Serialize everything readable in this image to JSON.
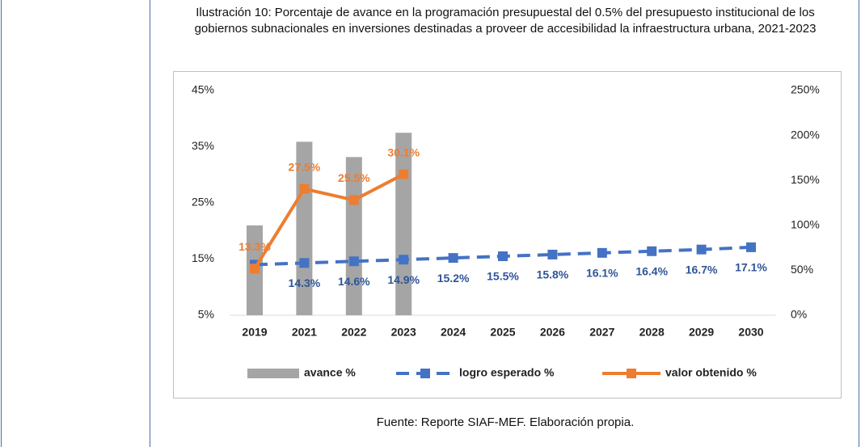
{
  "chart_data": {
    "type": "combo",
    "title": "Ilustración 10: Porcentaje de avance en la programación presupuestal del 0.5% del presupuesto institucional de los gobiernos subnacionales en inversiones destinadas a proveer de accesibilidad la infraestructura urbana, 2021-2023",
    "categories": [
      "2019",
      "2021",
      "2022",
      "2023",
      "2024",
      "2025",
      "2026",
      "2027",
      "2028",
      "2029",
      "2030"
    ],
    "series": [
      {
        "name": "avance %",
        "type": "bar",
        "axis": "y2",
        "color": "#a5a5a5",
        "values": [
          100,
          193,
          176,
          203,
          null,
          null,
          null,
          null,
          null,
          null,
          null
        ]
      },
      {
        "name": "logro esperado %",
        "type": "line",
        "dash": true,
        "color": "#4472c4",
        "label_position": "below",
        "values": [
          14.0,
          14.3,
          14.6,
          14.9,
          15.2,
          15.5,
          15.8,
          16.1,
          16.4,
          16.7,
          17.1
        ],
        "value_labels": [
          null,
          "14.3%",
          "14.6%",
          "14.9%",
          "15.2%",
          "15.5%",
          "15.8%",
          "16.1%",
          "16.4%",
          "16.7%",
          "17.1%"
        ]
      },
      {
        "name": "valor obtenido %",
        "type": "line",
        "dash": false,
        "color": "#ed7d31",
        "label_position": "above",
        "values": [
          13.3,
          27.5,
          25.5,
          30.1,
          null,
          null,
          null,
          null,
          null,
          null,
          null
        ],
        "value_labels": [
          "13.3%",
          "27.5%",
          "25.5%",
          "30.1%",
          null,
          null,
          null,
          null,
          null,
          null,
          null
        ]
      }
    ],
    "ylim": [
      5,
      45
    ],
    "yticks": [
      {
        "value": 5,
        "label": "5%"
      },
      {
        "value": 15,
        "label": "15%"
      },
      {
        "value": 25,
        "label": "25%"
      },
      {
        "value": 35,
        "label": "35%"
      },
      {
        "value": 45,
        "label": "45%"
      }
    ],
    "y2lim": [
      0,
      250
    ],
    "y2ticks": [
      {
        "value": 0,
        "label": "0%"
      },
      {
        "value": 50,
        "label": "50%"
      },
      {
        "value": 100,
        "label": "100%"
      },
      {
        "value": 150,
        "label": "150%"
      },
      {
        "value": 200,
        "label": "200%"
      },
      {
        "value": 250,
        "label": "250%"
      }
    ],
    "grid": false,
    "legend": "bottom",
    "source": "Fuente: Reporte SIAF-MEF. Elaboración propia."
  }
}
